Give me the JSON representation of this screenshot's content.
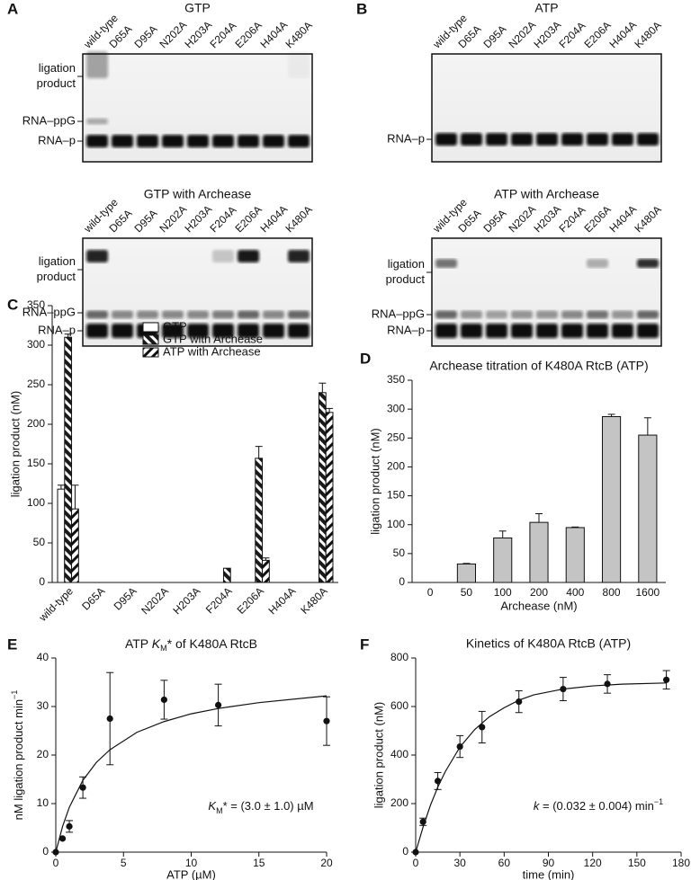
{
  "gels": [
    {
      "label": "A",
      "blots": [
        {
          "title": "GTP",
          "lanes": [
            "wild-type",
            "D65A",
            "D95A",
            "N202A",
            "H203A",
            "F204A",
            "E206A",
            "H404A",
            "K480A"
          ],
          "markers": [
            {
              "lines": [
                "ligation",
                "product"
              ]
            },
            {
              "lines": [
                "RNA–ppG"
              ]
            },
            {
              "lines": [
                "RNA–p"
              ]
            }
          ]
        },
        {
          "title": "GTP with Archease",
          "lanes": [
            "wild-type",
            "D65A",
            "D95A",
            "N202A",
            "H203A",
            "F204A",
            "E206A",
            "H404A",
            "K480A"
          ],
          "markers": [
            {
              "lines": [
                "ligation",
                "product"
              ]
            },
            {
              "lines": [
                "RNA–ppG"
              ]
            },
            {
              "lines": [
                "RNA–p"
              ]
            }
          ]
        }
      ]
    },
    {
      "label": "B",
      "blots": [
        {
          "title": "ATP",
          "lanes": [
            "wild-type",
            "D65A",
            "D95A",
            "N202A",
            "H203A",
            "F204A",
            "E206A",
            "H404A",
            "K480A"
          ],
          "markers": [
            {
              "lines": [
                "RNA–p"
              ]
            }
          ]
        },
        {
          "title": "ATP with Archease",
          "lanes": [
            "wild-type",
            "D65A",
            "D95A",
            "N202A",
            "H203A",
            "F204A",
            "E206A",
            "H404A",
            "K480A"
          ],
          "markers": [
            {
              "lines": [
                "ligation",
                "product"
              ]
            },
            {
              "lines": [
                "RNA–ppG"
              ]
            },
            {
              "lines": [
                "RNA–p"
              ]
            }
          ]
        }
      ]
    }
  ],
  "chart_data": [
    {
      "type": "bar",
      "panel": "C",
      "ylabel": "ligation product (nM)",
      "categories": [
        "wild-type",
        "D65A",
        "D95A",
        "N202A",
        "H203A",
        "F204A",
        "E206A",
        "H404A",
        "K480A"
      ],
      "series": [
        {
          "name": "GTP",
          "color": "#ffffff",
          "hatch": "none",
          "values": [
            118,
            0,
            0,
            0,
            0,
            0,
            0,
            0,
            0
          ],
          "errors": [
            5,
            null,
            null,
            null,
            null,
            null,
            null,
            null,
            null
          ]
        },
        {
          "name": "GTP with Archease",
          "color": "#1a1a1a",
          "hatch": "backslash",
          "values": [
            310,
            0,
            0,
            0,
            0,
            18,
            157,
            0,
            240
          ],
          "errors": [
            4,
            null,
            null,
            null,
            null,
            null,
            15,
            null,
            12
          ]
        },
        {
          "name": "ATP with Archease",
          "color": "#ffffff",
          "hatch": "slash",
          "values": [
            93,
            0,
            0,
            0,
            0,
            0,
            28,
            0,
            215
          ],
          "errors": [
            30,
            null,
            null,
            null,
            null,
            null,
            3,
            null,
            5
          ]
        }
      ],
      "ylim": [
        0,
        350
      ],
      "yticks": [
        0,
        50,
        100,
        150,
        200,
        250,
        300,
        350
      ],
      "legend": "upper center"
    },
    {
      "type": "bar",
      "panel": "D",
      "title": "Archease titration of K480A RtcB (ATP)",
      "xlabel": "Archease (nM)",
      "ylabel": "ligation product (nM)",
      "categories": [
        "0",
        "50",
        "100",
        "200",
        "400",
        "800",
        "1600"
      ],
      "values": [
        0,
        32,
        77,
        104,
        95,
        287,
        255
      ],
      "errors": [
        null,
        1,
        12,
        15,
        1,
        4,
        30
      ],
      "color": "#c4c4c4",
      "ylim": [
        0,
        350
      ],
      "yticks": [
        0,
        50,
        100,
        150,
        200,
        250,
        300,
        350
      ]
    },
    {
      "type": "scatter",
      "panel": "E",
      "title": [
        {
          "text": "ATP "
        },
        {
          "text": "K",
          "style": "italic"
        },
        {
          "text": "M",
          "style": "sub"
        },
        {
          "text": "* of K480A RtcB"
        }
      ],
      "xlabel": "ATP (µM)",
      "ylabel": [
        {
          "text": "nM ligation product min"
        },
        {
          "text": "−1",
          "style": "sup"
        }
      ],
      "annotation": [
        {
          "text": "K",
          "style": "italic"
        },
        {
          "text": "M",
          "style": "sub"
        },
        {
          "text": "* = (3.0 ± 1.0) µM"
        }
      ],
      "x": [
        0,
        0.5,
        1,
        2,
        4,
        8,
        12,
        20
      ],
      "y": [
        0,
        2.8,
        5.3,
        13.3,
        27.5,
        31.4,
        30.3,
        27
      ],
      "errors": [
        null,
        null,
        1.2,
        2.2,
        9.5,
        4,
        4.3,
        5
      ],
      "fit": {
        "x": [
          0,
          0.5,
          1,
          2,
          3,
          4,
          6,
          8,
          10,
          12,
          15,
          20
        ],
        "y": [
          0,
          5.29,
          9.25,
          14.8,
          18.5,
          21.1,
          24.7,
          26.9,
          28.5,
          29.6,
          30.8,
          32.2
        ]
      },
      "xlim": [
        0,
        20
      ],
      "xticks": [
        0,
        5,
        10,
        15,
        20
      ],
      "ylim": [
        0,
        40
      ],
      "yticks": [
        0,
        10,
        20,
        30,
        40
      ]
    },
    {
      "type": "scatter",
      "panel": "F",
      "title": "Kinetics of K480A RtcB (ATP)",
      "xlabel": "time (min)",
      "ylabel": "ligation product (nM)",
      "annotation": [
        {
          "text": "k",
          "style": "italic"
        },
        {
          "text": " = (0.032 ± 0.004) min"
        },
        {
          "text": "−1",
          "style": "sup"
        }
      ],
      "x": [
        0,
        5,
        15,
        30,
        45,
        70,
        100,
        130,
        170
      ],
      "y": [
        0,
        125,
        293,
        435,
        515,
        620,
        672,
        693,
        710
      ],
      "errors": [
        null,
        15,
        35,
        45,
        65,
        45,
        48,
        38,
        38
      ],
      "fit": {
        "x": [
          0,
          5,
          10,
          15,
          20,
          30,
          40,
          50,
          60,
          70,
          80,
          100,
          120,
          140,
          170
        ],
        "y": [
          0,
          103,
          193,
          268,
          331,
          433,
          505,
          558,
          595,
          626,
          648,
          672,
          685,
          692,
          697
        ]
      },
      "xlim": [
        0,
        180
      ],
      "xticks": [
        0,
        30,
        60,
        90,
        120,
        150,
        180
      ],
      "ylim": [
        0,
        800
      ],
      "yticks": [
        0,
        200,
        400,
        600,
        800
      ]
    }
  ]
}
